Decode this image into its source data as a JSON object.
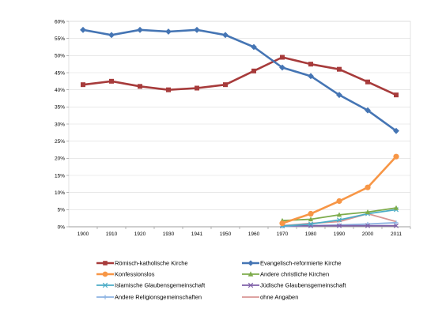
{
  "chart_data": {
    "type": "line",
    "title": "",
    "xlabel": "",
    "ylabel": "",
    "x": [
      "1900",
      "1910",
      "1920",
      "1930",
      "1941",
      "1950",
      "1960",
      "1970",
      "1980",
      "1990",
      "2000",
      "2011"
    ],
    "ylim": [
      0,
      60
    ],
    "yticks": [
      "0%",
      "5%",
      "10%",
      "15%",
      "20%",
      "25%",
      "30%",
      "35%",
      "40%",
      "45%",
      "50%",
      "55%",
      "60%"
    ],
    "grid": "horizontal",
    "legend_position": "bottom",
    "series": [
      {
        "name": "Römisch-katholische Kirche",
        "color": "#a73b3b",
        "marker": "square",
        "values": [
          41.5,
          42.5,
          41,
          40,
          40.5,
          41.5,
          45.5,
          49.5,
          47.5,
          46,
          42.3,
          38.5
        ]
      },
      {
        "name": "Evangelisch-reformierte Kirche",
        "color": "#4575b4",
        "marker": "diamond",
        "values": [
          57.5,
          56,
          57.5,
          57,
          57.5,
          56,
          52.5,
          46.5,
          44,
          38.5,
          34,
          28
        ]
      },
      {
        "name": "Konfessionslos",
        "color": "#f79646",
        "marker": "circle",
        "values": [
          null,
          null,
          null,
          null,
          null,
          null,
          null,
          1,
          3.8,
          7.5,
          11.5,
          20.5
        ]
      },
      {
        "name": "Andere christliche Kirchen",
        "color": "#7dab4b",
        "marker": "triangle",
        "values": [
          null,
          null,
          null,
          null,
          null,
          null,
          null,
          1.8,
          2.2,
          3.5,
          4.3,
          5.5
        ]
      },
      {
        "name": "Islamische Glaubensgemeinschaft",
        "color": "#4bacc6",
        "marker": "x",
        "values": [
          null,
          null,
          null,
          null,
          null,
          null,
          null,
          0.2,
          0.8,
          2,
          3.8,
          5
        ]
      },
      {
        "name": "Jüdische Glaubensgemeinschaft",
        "color": "#7f60a8",
        "marker": "x",
        "values": [
          null,
          null,
          null,
          null,
          null,
          null,
          null,
          0.3,
          0.3,
          0.3,
          0.3,
          0.3
        ]
      },
      {
        "name": "Andere Religionsgemeinschaften",
        "color": "#8db3e2",
        "marker": "plus",
        "values": [
          null,
          null,
          null,
          null,
          null,
          null,
          null,
          0.1,
          0.3,
          0.5,
          0.8,
          1.2
        ]
      },
      {
        "name": "ohne Angaben",
        "color": "#d99694",
        "marker": "none",
        "values": [
          null,
          null,
          null,
          null,
          null,
          null,
          null,
          0.3,
          1,
          1.5,
          3.8,
          1.5
        ]
      }
    ]
  }
}
